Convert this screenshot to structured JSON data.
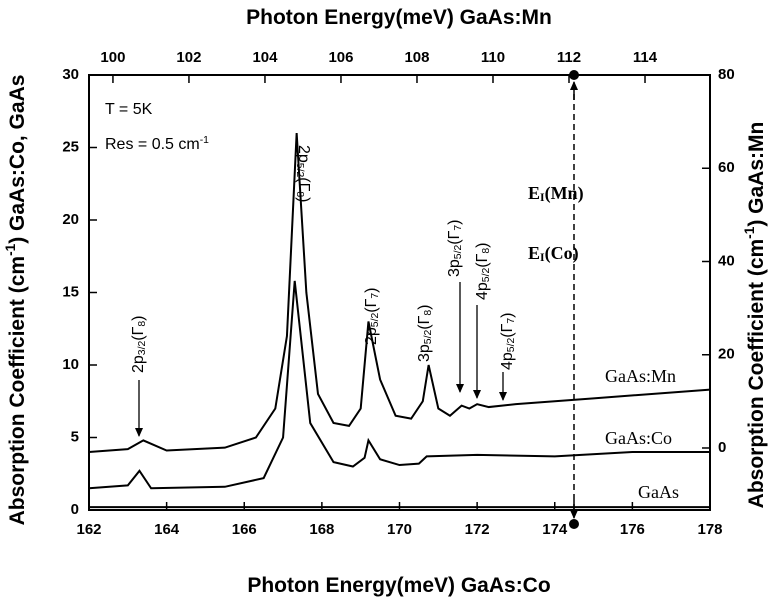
{
  "chart_data": {
    "type": "line",
    "title_top": [
      "Photon Energy(meV)  GaAs:Mn"
    ],
    "xlabel": [
      "Photon Energy(meV)  GaAs:Co"
    ],
    "ylabel": [
      "Absorption Coefficient (cm",
      "-1",
      ")  GaAs:Co, GaAs"
    ],
    "y2label": [
      "Absorption Coefficient (cm",
      "-1",
      ")  GaAs:Mn"
    ],
    "xlim": [
      162,
      178
    ],
    "xticks": [
      162,
      164,
      166,
      168,
      170,
      172,
      174,
      176,
      178
    ],
    "x2lim": [
      99.37,
      115.71
    ],
    "x2ticks": [
      100,
      102,
      104,
      106,
      108,
      110,
      112,
      114
    ],
    "ylim": [
      0,
      30
    ],
    "yticks": [
      0,
      5,
      10,
      15,
      20,
      25,
      30
    ],
    "y2lim": [
      -13.3,
      80
    ],
    "y2ticks": [
      0,
      20,
      40,
      60,
      80
    ],
    "series": [
      {
        "name": "GaAs:Mn",
        "color": "#000000",
        "x": [
          162,
          163,
          163.4,
          164,
          165.5,
          166.3,
          166.8,
          167.1,
          167.35,
          167.6,
          167.9,
          168.3,
          168.7,
          169,
          169.2,
          169.5,
          169.9,
          170.3,
          170.6,
          170.75,
          171,
          171.3,
          171.6,
          171.8,
          172,
          172.3,
          173,
          175,
          178
        ],
        "values": [
          4,
          4.2,
          4.8,
          4.1,
          4.3,
          5,
          7,
          12,
          26,
          15,
          8,
          6,
          5.8,
          7,
          13,
          9,
          6.5,
          6.3,
          7.5,
          10,
          7,
          6.5,
          7.2,
          7,
          7.3,
          7.1,
          7.3,
          7.7,
          8.3
        ]
      },
      {
        "name": "GaAs:Co",
        "color": "#000000",
        "x": [
          162,
          163,
          163.3,
          163.6,
          165.5,
          166.5,
          167,
          167.3,
          167.7,
          168.3,
          168.8,
          169.1,
          169.2,
          169.5,
          170,
          170.5,
          170.7,
          172,
          174,
          176,
          178
        ],
        "values": [
          1.5,
          1.7,
          2.7,
          1.5,
          1.6,
          2.2,
          5,
          15.8,
          6,
          3.3,
          3,
          3.6,
          4.8,
          3.5,
          3.1,
          3.2,
          3.7,
          3.8,
          3.7,
          4,
          4
        ]
      },
      {
        "name": "GaAs",
        "color": "#000000",
        "x": [
          162,
          178
        ],
        "values": [
          0.2,
          0.2
        ]
      }
    ],
    "annotations": {
      "temperature": [
        "T = 5K"
      ],
      "resolution": [
        "Res = 0.5 cm",
        "-1"
      ],
      "peaks": [
        [
          "2p",
          "3/2",
          "(Γ",
          "8",
          ")"
        ],
        [
          "2p",
          "5/2",
          "(Γ",
          "8",
          ")"
        ],
        [
          "2p",
          "5/2",
          "(Γ",
          "7",
          ")"
        ],
        [
          "3p",
          "5/2",
          "(Γ",
          "8",
          ")"
        ],
        [
          "3p",
          "5/2",
          "(Γ",
          "7",
          ")"
        ],
        [
          "4p",
          "5/2",
          "(Γ",
          "8",
          ")"
        ],
        [
          "4p",
          "5/2",
          "(Γ",
          "7",
          ")"
        ]
      ],
      "ei_mn": [
        "E",
        "I",
        "(Mn)"
      ],
      "ei_co": [
        "E",
        "I",
        "(Co)"
      ]
    }
  }
}
